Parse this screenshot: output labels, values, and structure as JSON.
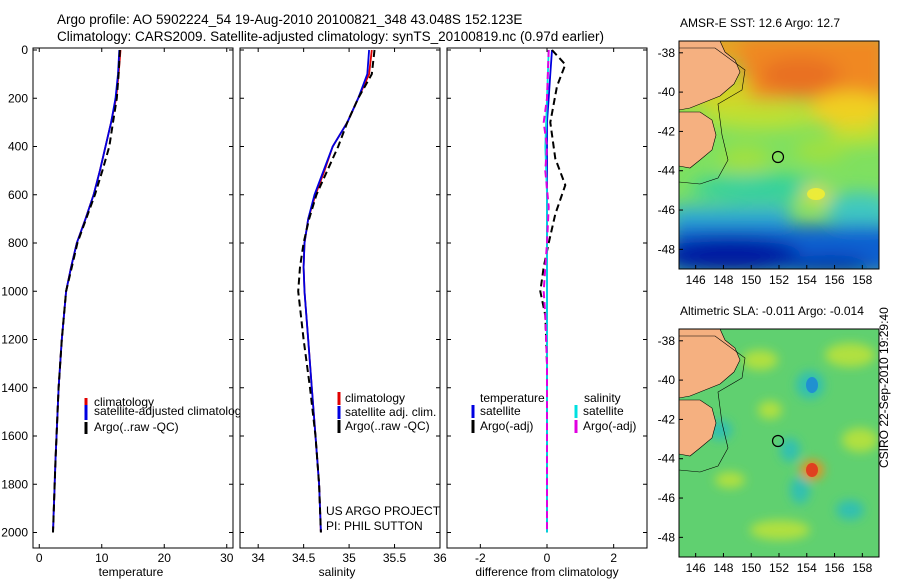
{
  "header": {
    "line1": "Argo profile: AO 5902224_54 19-Aug-2010 20100821_348 43.048S 152.123E",
    "line2": "Climatology: CARS2009. Satellite-adjusted climatology: synTS_20100819.nc (0.97d earlier)"
  },
  "side_stamp": "CSIRO 22-Sep-2010 19:29:40",
  "credit": {
    "line1": "US ARGO PROJECT",
    "line2": "PI: PHIL SUTTON"
  },
  "colors": {
    "climatology": "#e00000",
    "satellite": "#0000e0",
    "argo": "#000000",
    "salinity_satellite": "#00e0e0",
    "salinity_argo": "#e000e0",
    "land": "#f5b080",
    "marker": "#000000"
  },
  "chart_data": [
    {
      "type": "line",
      "xlabel": "temperature",
      "xlim": [
        -1,
        31
      ],
      "xticks": [
        0,
        10,
        20,
        30
      ],
      "ylim": [
        2000,
        0
      ],
      "yticks": [
        0,
        200,
        400,
        600,
        800,
        1000,
        1200,
        1400,
        1600,
        1800,
        2000
      ],
      "legend": [
        "climatology",
        "satellite-adjusted climatology",
        "Argo(..raw -QC)"
      ],
      "series": [
        {
          "name": "climatology",
          "style": "solid",
          "color": "#e00000",
          "x": [
            13.0,
            12.7,
            12.3,
            11.5,
            10.6,
            9.7,
            8.7,
            7.4,
            6.0,
            5.1,
            4.3,
            3.6,
            3.1,
            2.6,
            2.2
          ],
          "y": [
            0,
            100,
            200,
            300,
            400,
            500,
            600,
            700,
            800,
            900,
            1000,
            1200,
            1400,
            1700,
            2000
          ]
        },
        {
          "name": "satellite-adjusted climatology",
          "style": "solid",
          "color": "#0000e0",
          "x": [
            12.8,
            12.6,
            12.2,
            11.5,
            10.6,
            9.7,
            8.7,
            7.4,
            6.0,
            5.1,
            4.3,
            3.6,
            3.1,
            2.6,
            2.2
          ],
          "y": [
            0,
            100,
            200,
            300,
            400,
            500,
            600,
            700,
            800,
            900,
            1000,
            1200,
            1400,
            1700,
            2000
          ]
        },
        {
          "name": "Argo(..raw -QC)",
          "style": "dashed",
          "color": "#000000",
          "x": [
            12.9,
            12.7,
            12.4,
            11.8,
            11.2,
            10.1,
            8.9,
            7.5,
            6.1,
            5.2,
            4.3,
            3.6,
            3.1,
            2.6,
            2.2
          ],
          "y": [
            0,
            100,
            200,
            300,
            400,
            500,
            600,
            700,
            800,
            900,
            1000,
            1200,
            1400,
            1700,
            2000
          ]
        }
      ]
    },
    {
      "type": "line",
      "xlabel": "salinity",
      "xlim": [
        33.8,
        36.0
      ],
      "xticks": [
        34,
        34.5,
        35,
        35.5,
        36
      ],
      "xticklabels": [
        "34",
        "34.5",
        "35",
        "35.5",
        "36"
      ],
      "ylim": [
        2000,
        0
      ],
      "legend": [
        "climatology",
        "satellite adj. clim.",
        "Argo(..raw -QC)"
      ],
      "series": [
        {
          "name": "climatology",
          "style": "solid",
          "color": "#e00000",
          "x": [
            35.25,
            35.22,
            35.1,
            34.98,
            34.82,
            34.73,
            34.63,
            34.55,
            34.51,
            34.5,
            34.51,
            34.55,
            34.59,
            34.63,
            34.67,
            34.69
          ],
          "y": [
            0,
            100,
            200,
            300,
            400,
            500,
            600,
            700,
            800,
            900,
            1000,
            1200,
            1400,
            1600,
            1800,
            2000
          ]
        },
        {
          "name": "satellite adj. clim.",
          "style": "solid",
          "color": "#0000e0",
          "x": [
            35.22,
            35.2,
            35.1,
            34.98,
            34.82,
            34.72,
            34.62,
            34.55,
            34.51,
            34.5,
            34.51,
            34.55,
            34.59,
            34.63,
            34.67,
            34.69
          ],
          "y": [
            0,
            100,
            200,
            300,
            400,
            500,
            600,
            700,
            800,
            900,
            1000,
            1200,
            1400,
            1600,
            1800,
            2000
          ]
        },
        {
          "name": "Argo(..raw -QC)",
          "style": "dashed",
          "color": "#000000",
          "x": [
            35.28,
            35.25,
            35.1,
            34.98,
            34.88,
            34.76,
            34.64,
            34.56,
            34.5,
            34.46,
            34.44,
            34.5,
            34.57,
            34.63,
            34.67,
            34.69
          ],
          "y": [
            0,
            100,
            200,
            300,
            400,
            500,
            600,
            700,
            800,
            900,
            1000,
            1200,
            1400,
            1600,
            1800,
            2000
          ]
        }
      ],
      "annotation": [
        "US ARGO PROJECT",
        "PI: PHIL SUTTON"
      ]
    },
    {
      "type": "line",
      "xlabel": "difference from climatology",
      "xlim": [
        -3,
        3
      ],
      "xticks": [
        -2,
        0,
        2
      ],
      "ylim": [
        2000,
        0
      ],
      "legend_left_title": "temperature",
      "legend_right_title": "salinity",
      "legend": [
        "satellite",
        "Argo(-adj)",
        "satellite",
        "Argo(-adj)"
      ],
      "series": [
        {
          "name": "temperature satellite",
          "style": "solid",
          "color": "#0000e0",
          "x": [
            0.15,
            0.1,
            0.05,
            0.0,
            0.0,
            0.0,
            0.0,
            0.0,
            0.0,
            0.0,
            0.0,
            0.0
          ],
          "y": [
            0,
            100,
            200,
            300,
            500,
            700,
            900,
            1100,
            1300,
            1500,
            1800,
            2000
          ]
        },
        {
          "name": "temperature Argo(-adj)",
          "style": "dashed",
          "color": "#000000",
          "x": [
            0.15,
            0.55,
            0.3,
            0.1,
            0.25,
            0.55,
            0.25,
            0.05,
            -0.1,
            -0.2,
            -0.05,
            0.0,
            0.0,
            0.0,
            0.0
          ],
          "y": [
            0,
            60,
            150,
            300,
            450,
            560,
            680,
            800,
            900,
            1000,
            1100,
            1300,
            1500,
            1800,
            2000
          ]
        },
        {
          "name": "salinity satellite",
          "style": "solid",
          "color": "#00e0e0",
          "x": [
            0.05,
            0.0,
            -0.05,
            0.0,
            0.0,
            0.0,
            0.0,
            0.0,
            0.0,
            0.0
          ],
          "y": [
            0,
            200,
            400,
            600,
            800,
            1000,
            1200,
            1500,
            1800,
            2000
          ]
        },
        {
          "name": "salinity Argo(-adj)",
          "style": "dashed",
          "color": "#e000e0",
          "x": [
            0.05,
            0.0,
            -0.1,
            0.0,
            -0.05,
            0.05,
            0.0,
            -0.05,
            -0.1,
            -0.05,
            0.0,
            0.0,
            0.0
          ],
          "y": [
            0,
            200,
            300,
            400,
            500,
            650,
            800,
            900,
            1000,
            1100,
            1300,
            1600,
            2000
          ]
        }
      ]
    },
    {
      "type": "heatmap",
      "title": "AMSR-E SST: 12.6 Argo: 12.7",
      "xlim": [
        144.8,
        159.2
      ],
      "ylim": [
        -49,
        -37.4
      ],
      "xticks": [
        146,
        148,
        150,
        152,
        154,
        156,
        158
      ],
      "yticks": [
        -38,
        -40,
        -42,
        -44,
        -46,
        -48
      ],
      "marker": {
        "lon": 152.123,
        "lat": -43.048
      }
    },
    {
      "type": "heatmap",
      "title": "Altimetric SLA: -0.011 Argo: -0.014",
      "xlim": [
        144.8,
        159.2
      ],
      "ylim": [
        -49,
        -37.4
      ],
      "xticks": [
        146,
        148,
        150,
        152,
        154,
        156,
        158
      ],
      "yticks": [
        -38,
        -40,
        -42,
        -44,
        -46,
        -48
      ],
      "marker": {
        "lon": 152.123,
        "lat": -43.048
      }
    }
  ]
}
